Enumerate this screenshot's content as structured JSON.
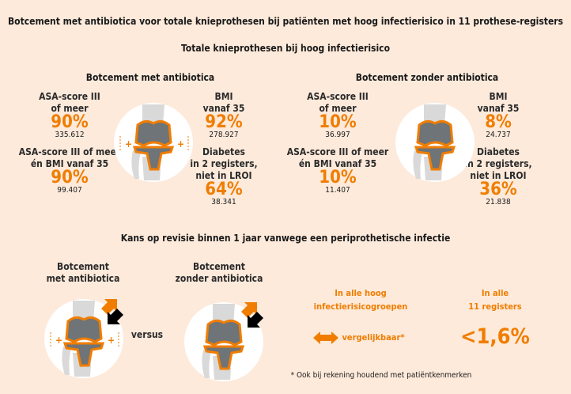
{
  "title": "Botcement met antibiotica voor totale knieprothesen bij patiënten met hoog infectierisico in 11 prothese-registers",
  "subtitle": "Totale knieprothesen bij hoog infectierisico",
  "colors": {
    "accent": "#f07d00",
    "background": "#fdeadb",
    "implant": "#6e7478",
    "bone": "#d9d9d9"
  },
  "with": {
    "heading": "Botcement met antibiotica",
    "asa": {
      "label1": "ASA-score III",
      "label2": "of meer",
      "pct": "90%",
      "n": "335.612"
    },
    "asa_bmi": {
      "label1": "ASA-score III of meer",
      "label2": "én BMI vanaf 35",
      "pct": "90%",
      "n": "99.407"
    },
    "bmi": {
      "label1": "BMI",
      "label2": "vanaf 35",
      "pct": "92%",
      "n": "278.927"
    },
    "diabetes": {
      "label1": "Diabetes",
      "label2": "in 2 registers,",
      "label3": "niet in LROI",
      "pct": "64%",
      "n": "38.341"
    }
  },
  "without": {
    "heading": "Botcement zonder antibiotica",
    "asa": {
      "label1": "ASA-score III",
      "label2": "of meer",
      "pct": "10%",
      "n": "36.997"
    },
    "asa_bmi": {
      "label1": "ASA-score III of meer",
      "label2": "én BMI vanaf 35",
      "pct": "10%",
      "n": "11.407"
    },
    "bmi": {
      "label1": "BMI",
      "label2": "vanaf 35",
      "pct": "8%",
      "n": "24.737"
    },
    "diabetes": {
      "label1": "Diabetes",
      "label2": "in 2 registers,",
      "label3": "niet in LROI",
      "pct": "36%",
      "n": "21.838"
    }
  },
  "revision": {
    "heading": "Kans op revisie binnen 1 jaar vanwege een periprothetische infectie",
    "with_label1": "Botcement",
    "with_label2": "met antibiotica",
    "without_label1": "Botcement",
    "without_label2": "zonder antibiotica",
    "versus": "versus",
    "groups_label1": "In alle hoog",
    "groups_label2": "infectierisicogroepen",
    "comparable": "vergelijkbaar*",
    "registers_label1": "In alle",
    "registers_label2": "11 registers",
    "value": "<1,6%",
    "footnote": "* Ook bij rekening houdend met patiëntkenmerken"
  }
}
